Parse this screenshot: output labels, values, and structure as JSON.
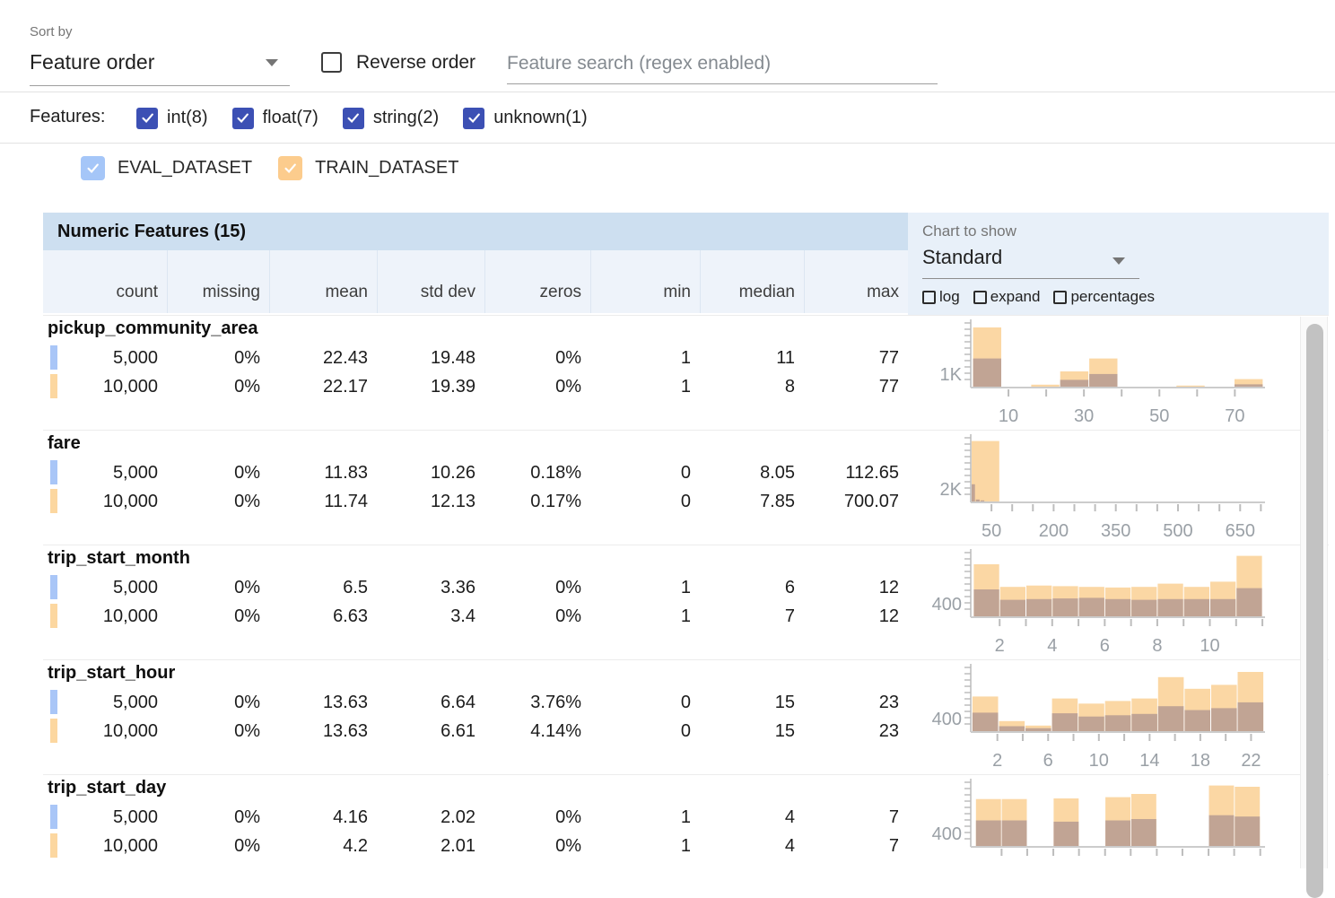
{
  "toolbar": {
    "sort_by_label": "Sort by",
    "sort_by_value": "Feature order",
    "reverse_order_label": "Reverse order",
    "search_placeholder": "Feature search (regex enabled)"
  },
  "filters": {
    "label": "Features:",
    "types": [
      {
        "label": "int(8)",
        "checked": true
      },
      {
        "label": "float(7)",
        "checked": true
      },
      {
        "label": "string(2)",
        "checked": true
      },
      {
        "label": "unknown(1)",
        "checked": true
      }
    ]
  },
  "datasets": [
    {
      "label": "EVAL_DATASET",
      "color": "#a5c6f8",
      "swatch": "#a9c6f7",
      "checked": true
    },
    {
      "label": "TRAIN_DATASET",
      "color": "#fccc8d",
      "swatch": "#fcd7a0",
      "checked": true
    }
  ],
  "table": {
    "title": "Numeric Features (15)",
    "columns": [
      "count",
      "missing",
      "mean",
      "std dev",
      "zeros",
      "min",
      "median",
      "max"
    ]
  },
  "chart_controls": {
    "label": "Chart to show",
    "value": "Standard",
    "options": [
      {
        "label": "log",
        "checked": false
      },
      {
        "label": "expand",
        "checked": false
      },
      {
        "label": "percentages",
        "checked": false
      }
    ]
  },
  "colors": {
    "indigo_checkbox": "#3c50b4",
    "train_bar": "#fbd7a4",
    "overlap_bar": "#c1a494",
    "axis": "#cccccc",
    "tick": "#bdbdbd",
    "axis_text": "#9aa0a6"
  },
  "features": [
    {
      "name": "pickup_community_area",
      "rows": [
        {
          "dataset": "eval",
          "values": [
            "5,000",
            "0%",
            "22.43",
            "19.48",
            "0%",
            "1",
            "11",
            "77"
          ]
        },
        {
          "dataset": "train",
          "values": [
            "10,000",
            "0%",
            "22.17",
            "19.39",
            "0%",
            "1",
            "8",
            "77"
          ]
        }
      ],
      "hist": {
        "ylabel": "1K",
        "xmin": 0,
        "xmax": 78,
        "ticks": [
          10,
          20,
          30,
          40,
          50,
          60,
          70
        ],
        "labels": [
          10,
          30,
          50,
          70
        ],
        "train": {
          "start": 0.5,
          "width": 7.7,
          "heights": [
            0.93,
            0.005,
            0.045,
            0.25,
            0.45,
            0.008,
            0.008,
            0.03,
            0.008,
            0.13
          ]
        },
        "eval": {
          "start": 0.5,
          "width": 7.7,
          "heights": [
            0.45,
            0.003,
            0.01,
            0.12,
            0.21,
            0.003,
            0.003,
            0.008,
            0.003,
            0.05
          ]
        }
      }
    },
    {
      "name": "fare",
      "rows": [
        {
          "dataset": "eval",
          "values": [
            "5,000",
            "0%",
            "11.83",
            "10.26",
            "0.18%",
            "0",
            "8.05",
            "112.65"
          ]
        },
        {
          "dataset": "train",
          "values": [
            "10,000",
            "0%",
            "11.74",
            "12.13",
            "0.17%",
            "0",
            "7.85",
            "700.07"
          ]
        }
      ],
      "hist": {
        "ylabel": "2K",
        "xmin": 0,
        "xmax": 710,
        "ticks": [
          50,
          100,
          150,
          200,
          250,
          300,
          350,
          400,
          450,
          500,
          550,
          600,
          650,
          700
        ],
        "labels": [
          50,
          200,
          350,
          500,
          650
        ],
        "train": {
          "start": 0,
          "width": 70,
          "heights": [
            0.95,
            0.01,
            0.004,
            0.002,
            0,
            0,
            0,
            0,
            0,
            0.004
          ]
        },
        "eval": {
          "start": 0,
          "width": 11.3,
          "heights": [
            0.28,
            0.045,
            0.03,
            0.012,
            0.006,
            0.004,
            0.003,
            0.002,
            0.001,
            0.001
          ]
        }
      }
    },
    {
      "name": "trip_start_month",
      "rows": [
        {
          "dataset": "eval",
          "values": [
            "5,000",
            "0%",
            "6.5",
            "3.36",
            "0%",
            "1",
            "6",
            "12"
          ]
        },
        {
          "dataset": "train",
          "values": [
            "10,000",
            "0%",
            "6.63",
            "3.4",
            "0%",
            "1",
            "7",
            "12"
          ]
        }
      ],
      "hist": {
        "ylabel": "400",
        "xmin": 0.9,
        "xmax": 12.1,
        "ticks": [
          2,
          3,
          4,
          5,
          6,
          7,
          8,
          9,
          10,
          11,
          12
        ],
        "labels": [
          2,
          4,
          6,
          8,
          10
        ],
        "train": {
          "start": 1,
          "width": 1,
          "heights": [
            0.82,
            0.47,
            0.49,
            0.48,
            0.47,
            0.46,
            0.47,
            0.52,
            0.47,
            0.55,
            0.95
          ]
        },
        "eval": {
          "start": 1,
          "width": 1,
          "heights": [
            0.43,
            0.27,
            0.28,
            0.29,
            0.3,
            0.28,
            0.27,
            0.28,
            0.28,
            0.28,
            0.45
          ]
        }
      }
    },
    {
      "name": "trip_start_hour",
      "rows": [
        {
          "dataset": "eval",
          "values": [
            "5,000",
            "0%",
            "13.63",
            "6.64",
            "3.76%",
            "0",
            "15",
            "23"
          ]
        },
        {
          "dataset": "train",
          "values": [
            "10,000",
            "0%",
            "13.63",
            "6.61",
            "4.14%",
            "0",
            "15",
            "23"
          ]
        }
      ],
      "hist": {
        "ylabel": "400",
        "xmin": -0.1,
        "xmax": 23.1,
        "ticks": [
          2,
          4,
          6,
          8,
          10,
          12,
          14,
          16,
          18,
          20,
          22
        ],
        "labels": [
          2,
          6,
          10,
          14,
          18,
          22
        ],
        "train": {
          "start": 0,
          "width": 2.0909,
          "heights": [
            0.55,
            0.17,
            0.1,
            0.52,
            0.44,
            0.48,
            0.52,
            0.85,
            0.67,
            0.73,
            0.93
          ]
        },
        "eval": {
          "start": 0,
          "width": 2.0909,
          "heights": [
            0.3,
            0.09,
            0.06,
            0.29,
            0.24,
            0.26,
            0.28,
            0.4,
            0.34,
            0.37,
            0.46
          ]
        }
      }
    },
    {
      "name": "trip_start_day",
      "rows": [
        {
          "dataset": "eval",
          "values": [
            "5,000",
            "0%",
            "4.16",
            "2.02",
            "0%",
            "1",
            "4",
            "7"
          ]
        },
        {
          "dataset": "train",
          "values": [
            "10,000",
            "0%",
            "4.2",
            "2.01",
            "0%",
            "1",
            "4",
            "7"
          ]
        }
      ],
      "hist": {
        "ylabel": "400",
        "xmin": 0.9,
        "xmax": 7.1,
        "ticks": [
          1.55,
          2.09,
          2.64,
          3.18,
          3.73,
          4.27,
          4.82,
          5.36,
          5.91,
          6.45,
          7.0
        ],
        "labels": [],
        "train": {
          "start": 1,
          "width": 0.5454,
          "heights": [
            0.74,
            0.74,
            0,
            0.75,
            0,
            0.77,
            0.82,
            0,
            0,
            0.95,
            0.93
          ]
        },
        "eval": {
          "start": 1,
          "width": 0.5454,
          "heights": [
            0.41,
            0.41,
            0,
            0.39,
            0,
            0.41,
            0.43,
            0,
            0,
            0.49,
            0.47
          ]
        }
      }
    }
  ]
}
